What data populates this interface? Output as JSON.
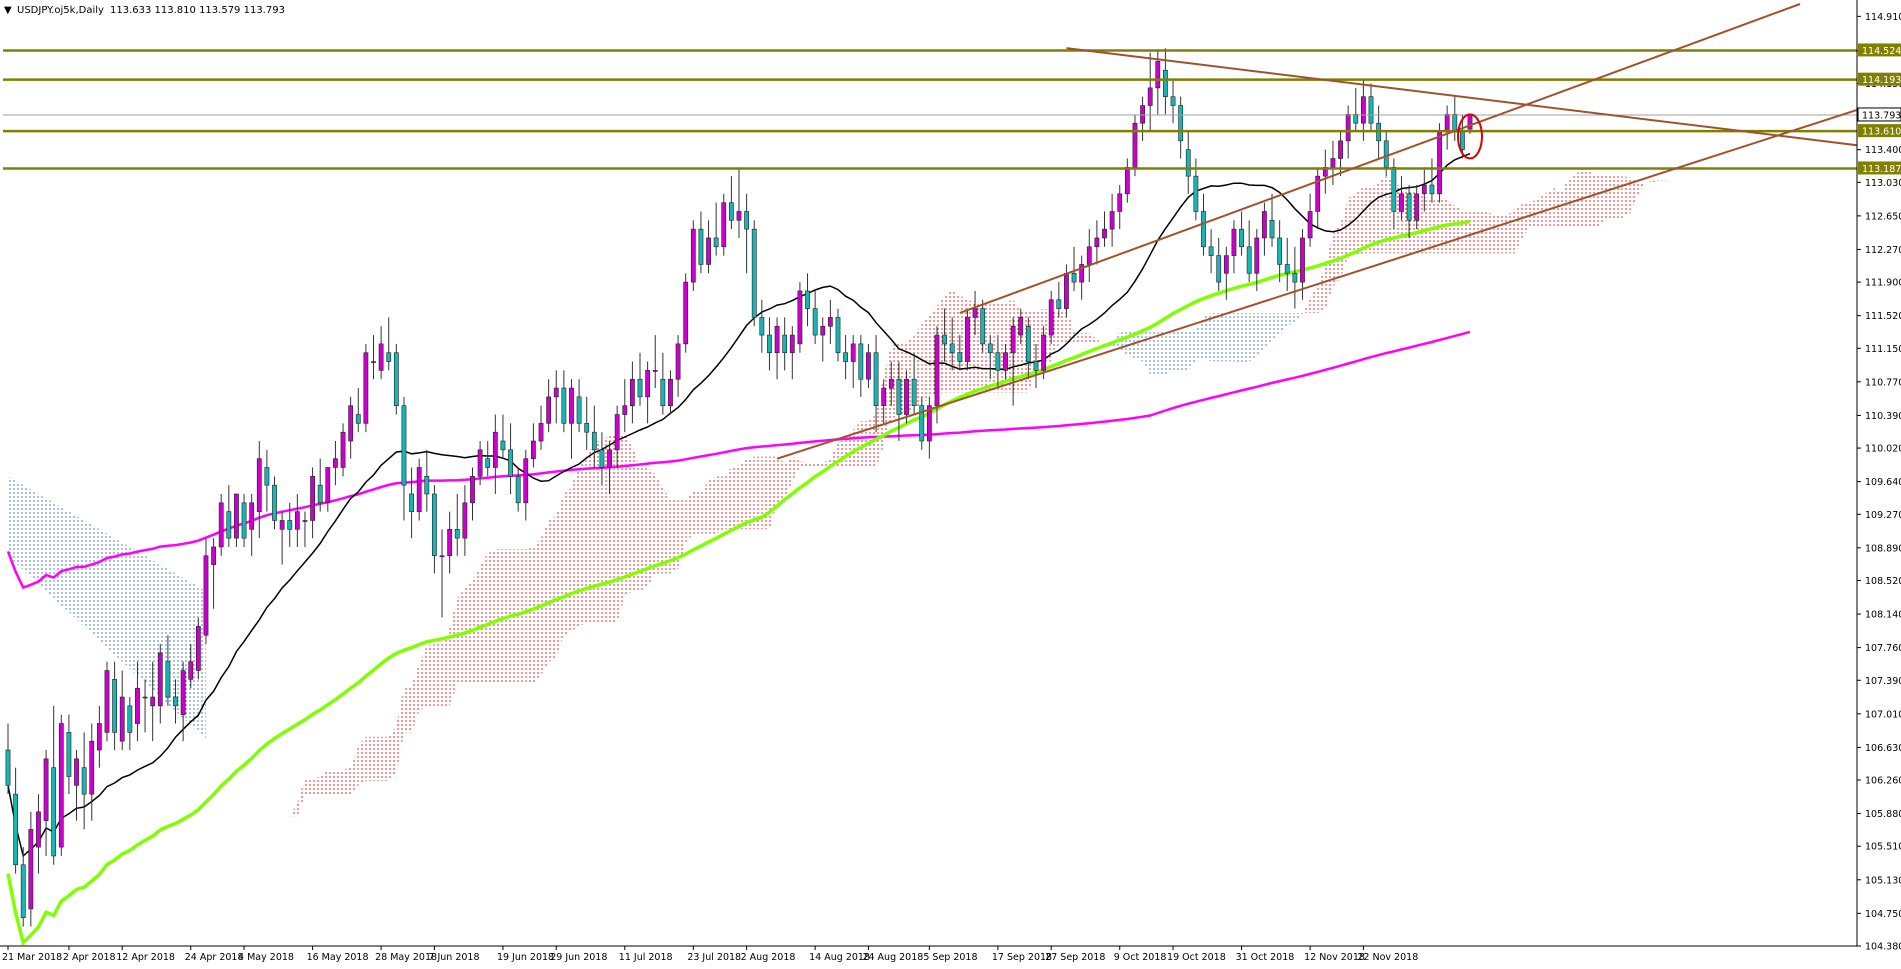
{
  "header": {
    "symbol_label": "USDJPY.oj5k,Daily",
    "ohlc_label": "113.633 113.810 113.579 113.793"
  },
  "colors": {
    "bull_body": "#cc00cc",
    "bear_body": "#19b5b5",
    "wick": "#333333",
    "sma200": "#ff00ff",
    "sma100": "#80ff00",
    "sma20": "#000000",
    "kumo_bull": "#e03030",
    "kumo_bear": "#4a7fc0",
    "sr_line": "#808000",
    "trend_line": "#a0522d",
    "marker": "#dd0000",
    "price_tag_bg": "#808000"
  },
  "chart_data": {
    "type": "candlestick",
    "symbol": "USDJPY",
    "timeframe": "Daily",
    "last_bar": {
      "open": 113.633,
      "high": 113.81,
      "low": 113.579,
      "close": 113.793
    },
    "ylim": [
      104.38,
      115.05
    ],
    "y_ticks": [
      "114.910",
      "114.520",
      "114.150",
      "113.780",
      "113.400",
      "113.030",
      "112.650",
      "112.270",
      "111.900",
      "111.520",
      "111.150",
      "110.770",
      "110.390",
      "110.020",
      "109.640",
      "109.270",
      "108.890",
      "108.520",
      "108.140",
      "107.760",
      "107.390",
      "107.010",
      "106.630",
      "106.260",
      "105.880",
      "105.510",
      "105.130",
      "104.750",
      "104.380"
    ],
    "x_labels": [
      "21 Mar 2018",
      "2 Apr 2018",
      "12 Apr 2018",
      "24 Apr 2018",
      "4 May 2018",
      "16 May 2018",
      "28 May 2018",
      "7 Jun 2018",
      "19 Jun 2018",
      "29 Jun 2018",
      "11 Jul 2018",
      "23 Jul 2018",
      "2 Aug 2018",
      "14 Aug 2018",
      "24 Aug 2018",
      "5 Sep 2018",
      "17 Sep 2018",
      "27 Sep 2018",
      "9 Oct 2018",
      "19 Oct 2018",
      "31 Oct 2018",
      "12 Nov 2018",
      "22 Nov 2018"
    ],
    "horizontal_levels": [
      {
        "value": 114.524,
        "label": "114.524"
      },
      {
        "value": 114.193,
        "label": "114.193"
      },
      {
        "value": 113.61,
        "label": "113.610"
      },
      {
        "value": 113.187,
        "label": "113.187"
      }
    ],
    "current_price": {
      "value": 113.793,
      "label": "113.793"
    },
    "ohlc": [
      [
        106.6,
        106.9,
        106.1,
        106.2
      ],
      [
        106.1,
        106.4,
        105.2,
        105.3
      ],
      [
        105.3,
        105.5,
        104.6,
        104.7
      ],
      [
        104.8,
        105.9,
        104.6,
        105.7
      ],
      [
        105.5,
        106.1,
        105.2,
        105.9
      ],
      [
        105.8,
        106.6,
        105.4,
        106.5
      ],
      [
        106.4,
        107.1,
        105.3,
        105.4
      ],
      [
        105.5,
        107.0,
        105.4,
        106.9
      ],
      [
        106.8,
        107.0,
        106.1,
        106.3
      ],
      [
        106.2,
        106.6,
        105.8,
        106.5
      ],
      [
        106.4,
        106.8,
        105.7,
        106.1
      ],
      [
        106.1,
        106.9,
        105.8,
        106.7
      ],
      [
        106.6,
        107.1,
        106.4,
        106.9
      ],
      [
        106.8,
        107.6,
        106.7,
        107.5
      ],
      [
        107.4,
        107.6,
        106.6,
        106.8
      ],
      [
        106.7,
        107.5,
        106.6,
        107.2
      ],
      [
        107.1,
        107.2,
        106.6,
        106.8
      ],
      [
        106.9,
        107.6,
        106.7,
        107.3
      ],
      [
        107.2,
        107.4,
        106.8,
        107.2
      ],
      [
        107.1,
        107.6,
        106.7,
        107.2
      ],
      [
        107.1,
        107.8,
        106.9,
        107.7
      ],
      [
        107.6,
        107.9,
        107.1,
        107.2
      ],
      [
        107.2,
        107.4,
        106.9,
        107.1
      ],
      [
        107.0,
        107.6,
        106.7,
        107.5
      ],
      [
        107.4,
        107.8,
        107.3,
        107.6
      ],
      [
        107.5,
        108.1,
        107.4,
        108.0
      ],
      [
        107.9,
        109.0,
        107.8,
        108.8
      ],
      [
        108.7,
        109.0,
        108.2,
        108.9
      ],
      [
        108.9,
        109.5,
        108.8,
        109.4
      ],
      [
        109.3,
        109.6,
        108.9,
        109.0
      ],
      [
        109.0,
        109.5,
        108.9,
        109.5
      ],
      [
        109.4,
        109.5,
        108.9,
        109.0
      ],
      [
        109.1,
        109.5,
        108.8,
        109.4
      ],
      [
        109.3,
        110.1,
        109.0,
        109.9
      ],
      [
        109.8,
        110.0,
        109.3,
        109.6
      ],
      [
        109.6,
        109.7,
        109.1,
        109.2
      ],
      [
        109.1,
        109.3,
        108.7,
        109.2
      ],
      [
        109.2,
        109.4,
        108.9,
        109.1
      ],
      [
        109.1,
        109.5,
        108.9,
        109.3
      ],
      [
        109.2,
        109.3,
        108.9,
        109.2
      ],
      [
        109.2,
        109.8,
        109.0,
        109.7
      ],
      [
        109.6,
        109.9,
        109.3,
        109.4
      ],
      [
        109.4,
        109.8,
        109.3,
        109.8
      ],
      [
        109.8,
        110.1,
        109.6,
        109.9
      ],
      [
        109.8,
        110.3,
        109.7,
        110.2
      ],
      [
        110.1,
        110.6,
        109.9,
        110.5
      ],
      [
        110.4,
        110.7,
        110.2,
        110.3
      ],
      [
        110.3,
        111.2,
        110.2,
        111.1
      ],
      [
        111.0,
        111.3,
        110.8,
        111.0
      ],
      [
        110.9,
        111.4,
        110.8,
        111.2
      ],
      [
        111.1,
        111.5,
        110.9,
        111.0
      ],
      [
        111.1,
        111.2,
        110.4,
        110.5
      ],
      [
        110.5,
        110.6,
        109.2,
        109.6
      ],
      [
        109.5,
        109.8,
        109.0,
        109.3
      ],
      [
        109.3,
        109.9,
        109.2,
        109.8
      ],
      [
        109.7,
        110.0,
        109.3,
        109.5
      ],
      [
        109.5,
        109.6,
        108.6,
        108.8
      ],
      [
        108.8,
        109.1,
        108.1,
        108.8
      ],
      [
        108.8,
        109.3,
        108.6,
        109.1
      ],
      [
        109.1,
        109.5,
        108.8,
        109.0
      ],
      [
        109.0,
        109.6,
        108.8,
        109.4
      ],
      [
        109.4,
        109.8,
        109.2,
        109.7
      ],
      [
        109.7,
        110.1,
        109.6,
        110.0
      ],
      [
        109.9,
        110.1,
        109.7,
        109.8
      ],
      [
        109.8,
        110.4,
        109.5,
        110.2
      ],
      [
        110.1,
        110.4,
        109.9,
        110.0
      ],
      [
        110.0,
        110.3,
        109.5,
        109.7
      ],
      [
        109.7,
        109.8,
        109.3,
        109.4
      ],
      [
        109.4,
        110.0,
        109.2,
        109.9
      ],
      [
        109.9,
        110.3,
        109.8,
        110.1
      ],
      [
        110.1,
        110.5,
        110.0,
        110.3
      ],
      [
        110.3,
        110.8,
        110.2,
        110.6
      ],
      [
        110.6,
        110.9,
        110.3,
        110.7
      ],
      [
        110.7,
        110.9,
        110.2,
        110.3
      ],
      [
        110.3,
        110.8,
        109.9,
        110.7
      ],
      [
        110.6,
        110.8,
        110.2,
        110.3
      ],
      [
        110.3,
        110.6,
        110.0,
        110.2
      ],
      [
        110.2,
        110.5,
        109.8,
        110.0
      ],
      [
        110.0,
        110.2,
        109.6,
        109.8
      ],
      [
        109.8,
        110.1,
        109.5,
        110.0
      ],
      [
        110.0,
        110.5,
        109.8,
        110.4
      ],
      [
        110.4,
        110.8,
        110.2,
        110.5
      ],
      [
        110.5,
        111.0,
        110.3,
        110.8
      ],
      [
        110.8,
        111.1,
        110.5,
        110.6
      ],
      [
        110.6,
        111.0,
        110.3,
        110.9
      ],
      [
        110.9,
        111.3,
        110.7,
        110.9
      ],
      [
        110.8,
        111.1,
        110.4,
        110.5
      ],
      [
        110.5,
        110.9,
        110.4,
        110.8
      ],
      [
        110.8,
        111.3,
        110.6,
        111.2
      ],
      [
        111.2,
        112.0,
        111.1,
        111.9
      ],
      [
        111.9,
        112.6,
        111.8,
        112.5
      ],
      [
        112.5,
        112.7,
        112.0,
        112.1
      ],
      [
        112.1,
        112.6,
        112.0,
        112.4
      ],
      [
        112.4,
        112.8,
        112.2,
        112.3
      ],
      [
        112.3,
        112.9,
        112.2,
        112.8
      ],
      [
        112.8,
        113.1,
        112.5,
        112.6
      ],
      [
        112.6,
        113.2,
        112.4,
        112.7
      ],
      [
        112.7,
        112.9,
        112.0,
        112.5
      ],
      [
        112.5,
        112.6,
        111.4,
        111.5
      ],
      [
        111.5,
        111.7,
        111.1,
        111.3
      ],
      [
        111.3,
        111.5,
        110.9,
        111.1
      ],
      [
        111.1,
        111.5,
        110.8,
        111.4
      ],
      [
        111.3,
        111.5,
        110.9,
        111.1
      ],
      [
        111.1,
        111.4,
        110.8,
        111.3
      ],
      [
        111.2,
        111.9,
        111.1,
        111.8
      ],
      [
        111.8,
        112.0,
        111.4,
        111.6
      ],
      [
        111.6,
        111.8,
        111.2,
        111.3
      ],
      [
        111.3,
        111.5,
        111.0,
        111.4
      ],
      [
        111.4,
        111.7,
        111.2,
        111.5
      ],
      [
        111.5,
        111.6,
        111.0,
        111.1
      ],
      [
        111.1,
        111.3,
        110.8,
        111.0
      ],
      [
        111.0,
        111.3,
        110.7,
        111.2
      ],
      [
        111.2,
        111.3,
        110.6,
        110.8
      ],
      [
        110.8,
        111.2,
        110.7,
        111.1
      ],
      [
        111.1,
        111.3,
        110.2,
        110.5
      ],
      [
        110.5,
        110.8,
        110.3,
        110.7
      ],
      [
        110.7,
        111.0,
        110.5,
        110.8
      ],
      [
        110.8,
        111.0,
        110.1,
        110.4
      ],
      [
        110.4,
        110.9,
        110.3,
        110.8
      ],
      [
        110.8,
        111.1,
        110.4,
        110.5
      ],
      [
        110.5,
        110.6,
        110.0,
        110.1
      ],
      [
        110.1,
        110.6,
        109.9,
        110.5
      ],
      [
        110.5,
        111.4,
        110.3,
        111.3
      ],
      [
        111.3,
        111.6,
        111.0,
        111.2
      ],
      [
        111.2,
        111.5,
        110.9,
        111.1
      ],
      [
        111.1,
        111.3,
        110.9,
        111.0
      ],
      [
        111.0,
        111.6,
        110.9,
        111.5
      ],
      [
        111.5,
        111.8,
        111.3,
        111.6
      ],
      [
        111.6,
        111.7,
        111.1,
        111.2
      ],
      [
        111.2,
        111.3,
        110.8,
        111.1
      ],
      [
        111.1,
        111.3,
        110.7,
        110.9
      ],
      [
        110.9,
        111.2,
        110.8,
        111.1
      ],
      [
        111.1,
        111.5,
        110.5,
        111.4
      ],
      [
        111.3,
        111.6,
        111.2,
        111.5
      ],
      [
        111.4,
        111.5,
        110.8,
        111.0
      ],
      [
        111.0,
        111.2,
        110.7,
        110.9
      ],
      [
        110.9,
        111.4,
        110.8,
        111.3
      ],
      [
        111.3,
        111.8,
        111.2,
        111.7
      ],
      [
        111.7,
        111.9,
        111.5,
        111.6
      ],
      [
        111.6,
        112.1,
        111.5,
        112.0
      ],
      [
        112.0,
        112.3,
        111.8,
        111.9
      ],
      [
        111.9,
        112.2,
        111.7,
        112.1
      ],
      [
        112.1,
        112.5,
        111.9,
        112.3
      ],
      [
        112.3,
        112.6,
        112.1,
        112.4
      ],
      [
        112.4,
        112.7,
        112.3,
        112.5
      ],
      [
        112.5,
        112.9,
        112.3,
        112.7
      ],
      [
        112.7,
        113.0,
        112.5,
        112.9
      ],
      [
        112.9,
        113.3,
        112.8,
        113.2
      ],
      [
        113.2,
        113.8,
        113.1,
        113.7
      ],
      [
        113.7,
        114.0,
        113.5,
        113.9
      ],
      [
        113.9,
        114.5,
        113.6,
        114.1
      ],
      [
        114.1,
        114.52,
        113.8,
        114.4
      ],
      [
        114.3,
        114.55,
        113.8,
        114.0
      ],
      [
        114.0,
        114.2,
        113.7,
        113.9
      ],
      [
        113.9,
        114.0,
        113.3,
        113.5
      ],
      [
        113.4,
        113.6,
        112.9,
        113.1
      ],
      [
        113.1,
        113.3,
        112.6,
        112.7
      ],
      [
        112.7,
        112.9,
        112.2,
        112.3
      ],
      [
        112.3,
        112.5,
        112.0,
        112.2
      ],
      [
        112.2,
        112.4,
        111.8,
        111.9
      ],
      [
        112.0,
        112.3,
        111.7,
        112.2
      ],
      [
        112.2,
        112.6,
        112.0,
        112.5
      ],
      [
        112.5,
        112.7,
        112.2,
        112.3
      ],
      [
        112.3,
        112.6,
        111.9,
        112.0
      ],
      [
        112.0,
        112.5,
        111.8,
        112.4
      ],
      [
        112.4,
        112.8,
        112.2,
        112.7
      ],
      [
        112.6,
        112.9,
        112.3,
        112.4
      ],
      [
        112.4,
        112.6,
        111.9,
        112.1
      ],
      [
        112.1,
        112.4,
        111.8,
        112.0
      ],
      [
        112.0,
        112.3,
        111.6,
        111.9
      ],
      [
        111.9,
        112.5,
        111.7,
        112.4
      ],
      [
        112.4,
        112.9,
        112.3,
        112.7
      ],
      [
        112.7,
        113.2,
        112.5,
        113.1
      ],
      [
        113.1,
        113.4,
        112.9,
        113.2
      ],
      [
        113.2,
        113.5,
        113.0,
        113.3
      ],
      [
        113.3,
        113.6,
        113.1,
        113.5
      ],
      [
        113.5,
        113.9,
        113.3,
        113.8
      ],
      [
        113.8,
        114.1,
        113.6,
        113.7
      ],
      [
        113.7,
        114.2,
        113.5,
        114.0
      ],
      [
        114.0,
        114.15,
        113.6,
        113.7
      ],
      [
        113.7,
        113.9,
        113.3,
        113.5
      ],
      [
        113.5,
        113.6,
        113.1,
        113.2
      ],
      [
        113.2,
        113.3,
        112.5,
        112.7
      ],
      [
        112.7,
        113.1,
        112.6,
        112.9
      ],
      [
        112.9,
        113.0,
        112.4,
        112.6
      ],
      [
        112.6,
        113.0,
        112.5,
        112.9
      ],
      [
        112.9,
        113.2,
        112.7,
        113.0
      ],
      [
        113.0,
        113.3,
        112.8,
        112.9
      ],
      [
        112.9,
        113.7,
        112.8,
        113.6
      ],
      [
        113.6,
        113.9,
        113.4,
        113.8
      ],
      [
        113.8,
        114.0,
        113.5,
        113.6
      ],
      [
        113.6,
        113.8,
        113.3,
        113.4
      ],
      [
        113.633,
        113.81,
        113.579,
        113.793
      ]
    ]
  }
}
